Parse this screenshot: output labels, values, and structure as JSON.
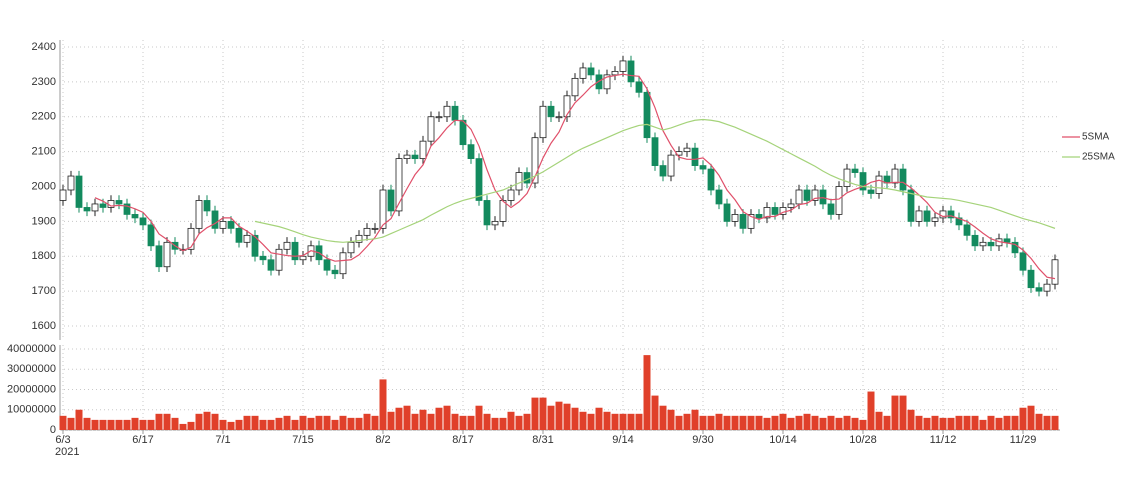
{
  "chart_data": {
    "type": "candlestick",
    "categories": [
      "6/3",
      null,
      null,
      null,
      null,
      null,
      null,
      null,
      null,
      null,
      "6/17",
      null,
      null,
      null,
      null,
      null,
      null,
      null,
      null,
      null,
      "7/1",
      null,
      null,
      null,
      null,
      null,
      null,
      null,
      null,
      null,
      "7/15",
      null,
      null,
      null,
      null,
      null,
      null,
      null,
      null,
      null,
      "8/2",
      null,
      null,
      null,
      null,
      null,
      null,
      null,
      null,
      null,
      "8/17",
      null,
      null,
      null,
      null,
      null,
      null,
      null,
      null,
      null,
      "8/31",
      null,
      null,
      null,
      null,
      null,
      null,
      null,
      null,
      null,
      "9/14",
      null,
      null,
      null,
      null,
      null,
      null,
      null,
      null,
      null,
      "9/30",
      null,
      null,
      null,
      null,
      null,
      null,
      null,
      null,
      null,
      "10/14",
      null,
      null,
      null,
      null,
      null,
      null,
      null,
      null,
      null,
      "10/28",
      null,
      null,
      null,
      null,
      null,
      null,
      null,
      null,
      null,
      "11/12",
      null,
      null,
      null,
      null,
      null,
      null,
      null,
      null,
      null,
      "11/29",
      null,
      null,
      null,
      null
    ],
    "year_label": "2021",
    "open": [
      1960,
      1990,
      2030,
      1940,
      1930,
      1950,
      1940,
      1960,
      1950,
      1920,
      1910,
      1890,
      1830,
      1770,
      1840,
      1820,
      1820,
      1880,
      1960,
      1930,
      1880,
      1900,
      1880,
      1840,
      1860,
      1800,
      1790,
      1760,
      1820,
      1840,
      1790,
      1800,
      1830,
      1790,
      1760,
      1750,
      1810,
      1840,
      1860,
      1880,
      1880,
      1990,
      1930,
      2080,
      2090,
      2080,
      2130,
      2200,
      2200,
      2230,
      2190,
      2120,
      2080,
      1960,
      1890,
      1900,
      1960,
      1990,
      2040,
      2010,
      2140,
      2230,
      2200,
      2200,
      2260,
      2310,
      2340,
      2320,
      2280,
      2320,
      2330,
      2360,
      2300,
      2270,
      2140,
      2060,
      2030,
      2090,
      2100,
      2110,
      2060,
      2050,
      1990,
      1950,
      1900,
      1920,
      1880,
      1920,
      1910,
      1940,
      1920,
      1940,
      1950,
      1990,
      1960,
      1990,
      1950,
      1920,
      2000,
      2050,
      2040,
      1990,
      1980,
      2030,
      2010,
      2050,
      1990,
      1900,
      1930,
      1900,
      1910,
      1930,
      1910,
      1890,
      1860,
      1830,
      1840,
      1830,
      1850,
      1840,
      1810,
      1760,
      1710,
      1700,
      1720
    ],
    "high": [
      2005,
      2045,
      2045,
      1955,
      1965,
      1965,
      1975,
      1975,
      1965,
      1935,
      1925,
      1905,
      1845,
      1855,
      1855,
      1835,
      1895,
      1975,
      1975,
      1945,
      1915,
      1915,
      1895,
      1875,
      1875,
      1815,
      1805,
      1835,
      1855,
      1855,
      1815,
      1845,
      1845,
      1805,
      1775,
      1825,
      1855,
      1875,
      1895,
      1895,
      2005,
      2005,
      2095,
      2105,
      2105,
      2145,
      2215,
      2215,
      2245,
      2245,
      2205,
      2135,
      2095,
      1975,
      1915,
      1975,
      2005,
      2055,
      2055,
      2155,
      2245,
      2245,
      2215,
      2275,
      2325,
      2355,
      2355,
      2335,
      2335,
      2345,
      2375,
      2375,
      2315,
      2285,
      2155,
      2075,
      2105,
      2115,
      2125,
      2125,
      2075,
      2065,
      2005,
      1965,
      1935,
      1935,
      1935,
      1935,
      1955,
      1955,
      1955,
      1965,
      2005,
      2005,
      2005,
      2005,
      1965,
      2015,
      2065,
      2065,
      2055,
      2005,
      2045,
      2045,
      2065,
      2065,
      2005,
      1945,
      1945,
      1925,
      1945,
      1945,
      1925,
      1905,
      1875,
      1855,
      1855,
      1865,
      1865,
      1855,
      1825,
      1775,
      1725,
      1735,
      1805
    ],
    "low": [
      1945,
      1975,
      1925,
      1915,
      1915,
      1925,
      1925,
      1935,
      1905,
      1895,
      1875,
      1815,
      1755,
      1755,
      1805,
      1805,
      1805,
      1865,
      1915,
      1865,
      1865,
      1865,
      1825,
      1825,
      1785,
      1775,
      1745,
      1745,
      1805,
      1775,
      1775,
      1785,
      1775,
      1745,
      1735,
      1735,
      1795,
      1825,
      1845,
      1865,
      1865,
      1915,
      1915,
      2065,
      2065,
      2065,
      2115,
      2185,
      2185,
      2175,
      2105,
      2065,
      1945,
      1875,
      1875,
      1885,
      1945,
      1975,
      1995,
      1995,
      2125,
      2185,
      2185,
      2185,
      2245,
      2295,
      2305,
      2265,
      2265,
      2305,
      2315,
      2285,
      2255,
      2125,
      2045,
      2015,
      2015,
      2075,
      2085,
      2045,
      2035,
      1975,
      1935,
      1885,
      1885,
      1865,
      1865,
      1895,
      1895,
      1905,
      1905,
      1925,
      1935,
      1945,
      1945,
      1935,
      1905,
      1905,
      1985,
      2025,
      1975,
      1965,
      1965,
      1995,
      1995,
      1975,
      1885,
      1885,
      1885,
      1885,
      1895,
      1895,
      1875,
      1845,
      1815,
      1815,
      1815,
      1815,
      1825,
      1795,
      1745,
      1695,
      1685,
      1685,
      1705
    ],
    "close": [
      1990,
      2030,
      1940,
      1930,
      1950,
      1940,
      1960,
      1950,
      1920,
      1910,
      1890,
      1830,
      1770,
      1840,
      1820,
      1820,
      1880,
      1960,
      1930,
      1880,
      1900,
      1880,
      1840,
      1860,
      1800,
      1790,
      1760,
      1820,
      1840,
      1790,
      1800,
      1830,
      1790,
      1760,
      1750,
      1810,
      1840,
      1860,
      1880,
      1880,
      1990,
      1930,
      2080,
      2090,
      2080,
      2130,
      2200,
      2200,
      2230,
      2190,
      2120,
      2080,
      1960,
      1890,
      1900,
      1960,
      1990,
      2040,
      2010,
      2140,
      2230,
      2200,
      2200,
      2260,
      2310,
      2340,
      2320,
      2280,
      2320,
      2330,
      2360,
      2300,
      2270,
      2140,
      2060,
      2030,
      2090,
      2100,
      2110,
      2060,
      2050,
      1990,
      1950,
      1900,
      1920,
      1880,
      1920,
      1910,
      1940,
      1920,
      1940,
      1950,
      1990,
      1960,
      1990,
      1950,
      1920,
      2000,
      2050,
      2040,
      1990,
      1980,
      2030,
      2010,
      2050,
      1990,
      1900,
      1930,
      1900,
      1910,
      1930,
      1910,
      1890,
      1860,
      1830,
      1840,
      1830,
      1850,
      1840,
      1810,
      1760,
      1710,
      1700,
      1720,
      1790
    ],
    "up_color": "#ffffff",
    "down_color": "#138a5e",
    "ylim": [
      1560,
      2420
    ],
    "yticks": [
      1600,
      1700,
      1800,
      1900,
      2000,
      2100,
      2200,
      2300,
      2400
    ],
    "grid": true,
    "legend": "right",
    "series": [
      {
        "name": "5SMA",
        "color": "#e0506a",
        "values": [
          null,
          null,
          null,
          null,
          1968,
          1958,
          1944,
          1946,
          1944,
          1936,
          1926,
          1900,
          1864,
          1848,
          1830,
          1816,
          1826,
          1864,
          1882,
          1894,
          1910,
          1910,
          1886,
          1872,
          1856,
          1834,
          1810,
          1806,
          1802,
          1800,
          1802,
          1816,
          1810,
          1794,
          1786,
          1788,
          1790,
          1804,
          1828,
          1854,
          1890,
          1908,
          1952,
          1994,
          2034,
          2062,
          2116,
          2140,
          2168,
          2190,
          2188,
          2164,
          2116,
          2048,
          1990,
          1958,
          1940,
          1956,
          1980,
          2028,
          2082,
          2124,
          2156,
          2206,
          2240,
          2262,
          2286,
          2302,
          2314,
          2318,
          2322,
          2318,
          2316,
          2280,
          2226,
          2160,
          2118,
          2084,
          2078,
          2078,
          2082,
          2062,
          2032,
          1990,
          1962,
          1928,
          1914,
          1906,
          1914,
          1914,
          1926,
          1932,
          1948,
          1952,
          1966,
          1968,
          1962,
          1964,
          1982,
          1992,
          2000,
          2012,
          2018,
          2010,
          2012,
          2012,
          1996,
          1976,
          1954,
          1926,
          1914,
          1916,
          1908,
          1900,
          1884,
          1866,
          1850,
          1842,
          1838,
          1834,
          1818,
          1794,
          1764,
          1740,
          1736
        ]
      },
      {
        "name": "25SMA",
        "color": "#a5d37a",
        "values": [
          null,
          null,
          null,
          null,
          null,
          null,
          null,
          null,
          null,
          null,
          null,
          null,
          null,
          null,
          null,
          null,
          null,
          null,
          null,
          null,
          null,
          null,
          null,
          null,
          1900,
          1895,
          1890,
          1885,
          1878,
          1870,
          1862,
          1855,
          1850,
          1845,
          1842,
          1840,
          1842,
          1845,
          1848,
          1850,
          1855,
          1865,
          1875,
          1885,
          1895,
          1905,
          1918,
          1930,
          1942,
          1952,
          1960,
          1966,
          1972,
          1978,
          1984,
          1990,
          2000,
          2010,
          2020,
          2030,
          2042,
          2056,
          2070,
          2084,
          2098,
          2110,
          2120,
          2130,
          2140,
          2150,
          2160,
          2168,
          2175,
          2178,
          2170,
          2162,
          2168,
          2176,
          2184,
          2190,
          2192,
          2190,
          2186,
          2178,
          2170,
          2160,
          2150,
          2140,
          2130,
          2118,
          2106,
          2094,
          2082,
          2070,
          2058,
          2044,
          2032,
          2022,
          2014,
          2006,
          2000,
          1998,
          1996,
          1994,
          1990,
          1985,
          1980,
          1975,
          1970,
          1968,
          1966,
          1964,
          1960,
          1955,
          1950,
          1945,
          1940,
          1932,
          1924,
          1916,
          1908,
          1902,
          1896,
          1888,
          1880
        ]
      }
    ],
    "volume": {
      "type": "bar",
      "color": "#e0402a",
      "ylim": [
        0,
        42000000
      ],
      "yticks": [
        0,
        10000000,
        20000000,
        30000000,
        40000000
      ],
      "values": [
        7000000,
        6000000,
        10000000,
        6000000,
        5000000,
        5000000,
        5000000,
        5000000,
        5000000,
        6000000,
        5000000,
        5000000,
        8000000,
        8000000,
        6000000,
        3000000,
        4000000,
        8000000,
        9000000,
        8000000,
        5000000,
        4000000,
        5000000,
        7000000,
        7000000,
        5000000,
        5000000,
        6000000,
        7000000,
        5000000,
        7000000,
        6000000,
        7000000,
        7000000,
        5000000,
        7000000,
        6000000,
        6000000,
        8000000,
        7000000,
        25000000,
        9000000,
        11000000,
        12000000,
        8000000,
        10000000,
        8000000,
        11000000,
        12000000,
        8000000,
        7000000,
        7000000,
        12000000,
        8000000,
        6000000,
        6000000,
        9000000,
        7000000,
        8000000,
        16000000,
        16000000,
        12000000,
        14000000,
        13000000,
        11000000,
        9000000,
        8000000,
        11000000,
        9000000,
        8000000,
        8000000,
        8000000,
        8000000,
        37000000,
        17000000,
        12000000,
        10000000,
        7000000,
        8000000,
        10000000,
        7000000,
        7000000,
        8000000,
        7000000,
        7000000,
        7000000,
        7000000,
        7000000,
        6000000,
        7000000,
        8000000,
        6000000,
        7000000,
        8000000,
        7000000,
        6000000,
        7000000,
        6000000,
        7000000,
        6000000,
        5000000,
        19000000,
        9000000,
        7000000,
        17000000,
        17000000,
        10000000,
        7000000,
        6000000,
        7000000,
        6000000,
        6000000,
        7000000,
        7000000,
        7000000,
        5000000,
        7000000,
        6000000,
        7000000,
        7000000,
        11000000,
        12000000,
        8000000,
        7000000,
        7000000
      ]
    }
  }
}
